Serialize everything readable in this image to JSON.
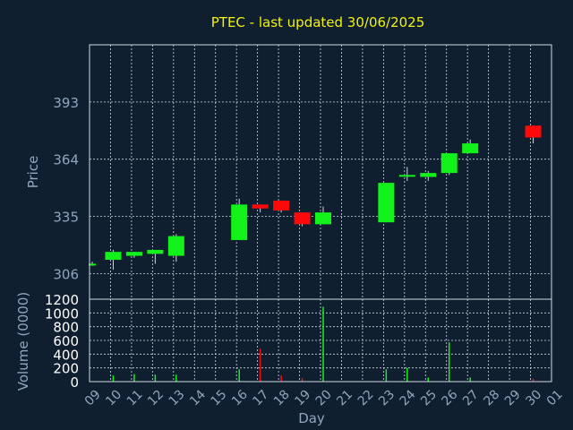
{
  "chart_data": [
    {
      "type": "candlestick",
      "title": "PTEC - last updated 30/06/2025",
      "xlabel": "Day",
      "ylabel": "Price",
      "ylim": [
        293,
        422
      ],
      "yticks": [
        306,
        335,
        364,
        393
      ],
      "grid": true,
      "colors": {
        "up": "#12f21a",
        "down": "#fc0a0a",
        "wick": "#cfd6dc"
      },
      "candles": [
        {
          "day": "09",
          "open": 311,
          "high": 312,
          "low": 310,
          "close": 311
        },
        {
          "day": "10",
          "open": 313,
          "high": 318,
          "low": 308,
          "close": 317
        },
        {
          "day": "11",
          "open": 315,
          "high": 317,
          "low": 314,
          "close": 317
        },
        {
          "day": "12",
          "open": 316,
          "high": 318,
          "low": 311,
          "close": 318
        },
        {
          "day": "13",
          "open": 315,
          "high": 326,
          "low": 312,
          "close": 325
        },
        {
          "day": "16",
          "open": 323,
          "high": 344,
          "low": 323,
          "close": 341
        },
        {
          "day": "17",
          "open": 341,
          "high": 341,
          "low": 337,
          "close": 339
        },
        {
          "day": "18",
          "open": 343,
          "high": 343,
          "low": 337,
          "close": 338
        },
        {
          "day": "19",
          "open": 337,
          "high": 337,
          "low": 330,
          "close": 331
        },
        {
          "day": "20",
          "open": 331,
          "high": 340,
          "low": 331,
          "close": 337
        },
        {
          "day": "23",
          "open": 332,
          "high": 352,
          "low": 332,
          "close": 352
        },
        {
          "day": "24",
          "open": 356,
          "high": 360,
          "low": 353,
          "close": 356
        },
        {
          "day": "25",
          "open": 355,
          "high": 358,
          "low": 353,
          "close": 357
        },
        {
          "day": "26",
          "open": 357,
          "high": 367,
          "low": 356,
          "close": 367
        },
        {
          "day": "27",
          "open": 367,
          "high": 374,
          "low": 367,
          "close": 372
        },
        {
          "day": "30",
          "open": 381,
          "high": 381,
          "low": 372,
          "close": 375
        }
      ]
    },
    {
      "type": "bar",
      "ylabel": "Volume (0000)",
      "ylim": [
        0,
        1200
      ],
      "yticks": [
        0,
        200,
        400,
        600,
        800,
        1000,
        1200
      ],
      "grid": true,
      "categories": [
        "09",
        "10",
        "11",
        "12",
        "13",
        "16",
        "17",
        "18",
        "19",
        "20",
        "23",
        "24",
        "25",
        "26",
        "27",
        "30"
      ],
      "values": [
        5,
        90,
        110,
        100,
        100,
        180,
        480,
        90,
        50,
        1090,
        180,
        200,
        60,
        570,
        60,
        40
      ],
      "direction": [
        "up",
        "up",
        "up",
        "up",
        "up",
        "up",
        "down",
        "down",
        "down",
        "up",
        "up",
        "up",
        "up",
        "up",
        "up",
        "down"
      ],
      "xticks": [
        "09",
        "10",
        "11",
        "12",
        "13",
        "14",
        "15",
        "16",
        "17",
        "18",
        "19",
        "20",
        "21",
        "22",
        "23",
        "24",
        "25",
        "26",
        "27",
        "28",
        "29",
        "30",
        "01"
      ],
      "xlabel": "Day"
    }
  ]
}
